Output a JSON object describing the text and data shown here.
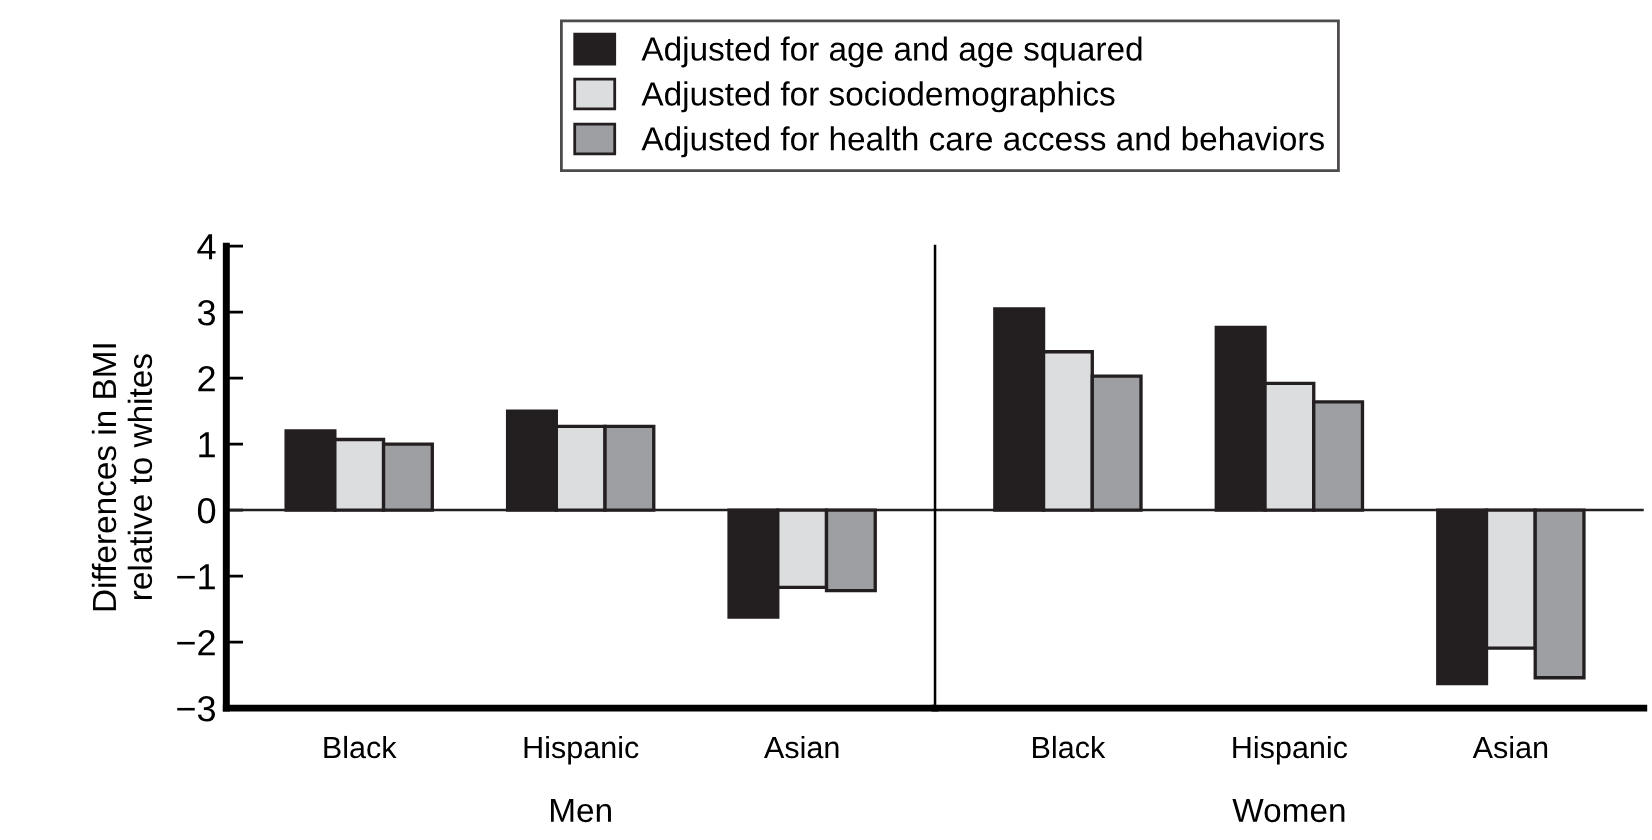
{
  "chart_data": [
    {
      "type": "bar",
      "ylabel": "Differences in BMI\nrelative to whites",
      "xlabel": "Men",
      "categories": [
        "Black",
        "Hispanic",
        "Asian"
      ],
      "series": [
        {
          "name": "Adjusted for age and age squared",
          "color": "#231f20",
          "values": [
            1.2,
            1.5,
            -1.62
          ]
        },
        {
          "name": "Adjusted for sociodemographics",
          "color": "#dcdddf",
          "values": [
            1.07,
            1.27,
            -1.17
          ]
        },
        {
          "name": "Adjusted for health care access and behaviors",
          "color": "#9d9fa2",
          "values": [
            1.0,
            1.27,
            -1.22
          ]
        }
      ],
      "ylim": [
        -3,
        4
      ],
      "yticks": [
        {
          "value": -3,
          "label": "−3"
        },
        {
          "value": -2,
          "label": "−2"
        },
        {
          "value": -1,
          "label": "−1"
        },
        0,
        1,
        2,
        3,
        4
      ],
      "ref_lines": [
        {
          "axis": "y",
          "value": 0
        }
      ],
      "legend": "top",
      "grid": false
    },
    {
      "type": "bar",
      "xlabel": "Women",
      "categories": [
        "Black",
        "Hispanic",
        "Asian"
      ],
      "series": [
        {
          "name": "Adjusted for age and age squared",
          "color": "#231f20",
          "values": [
            3.05,
            2.77,
            -2.63
          ]
        },
        {
          "name": "Adjusted for sociodemographics",
          "color": "#dcdddf",
          "values": [
            2.4,
            1.92,
            -2.09
          ]
        },
        {
          "name": "Adjusted for health care access and behaviors",
          "color": "#9d9fa2",
          "values": [
            2.03,
            1.64,
            -2.54
          ]
        }
      ],
      "ylim": [
        -3,
        4
      ],
      "ref_lines": [
        {
          "axis": "y",
          "value": 0
        }
      ],
      "tick_labels": "x",
      "grid": false
    }
  ]
}
